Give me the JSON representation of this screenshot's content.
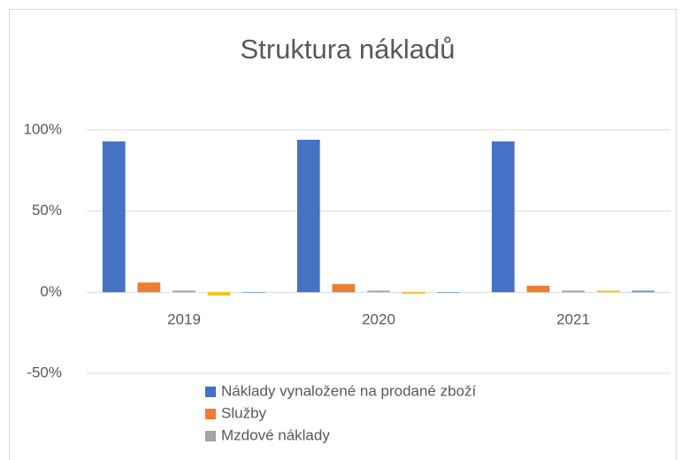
{
  "chart_data": {
    "type": "bar",
    "title": "Struktura nákladů",
    "categories": [
      "2019",
      "2020",
      "2021"
    ],
    "series": [
      {
        "name": "Náklady vynaložené na prodané zboží",
        "color": "#4472c4",
        "values": [
          93,
          94,
          93
        ]
      },
      {
        "name": "Služby",
        "color": "#ed7d31",
        "values": [
          6,
          5,
          4
        ]
      },
      {
        "name": "Mzdové náklady",
        "color": "#a5a5a5",
        "values": [
          1,
          1,
          1
        ]
      },
      {
        "color": "#ffc000",
        "values": [
          -2,
          -1,
          1
        ]
      },
      {
        "color": "#5b9bd5",
        "values": [
          0,
          0,
          1
        ]
      }
    ],
    "ylim": [
      -50,
      100
    ],
    "yticks": [
      {
        "value": -50,
        "label": "-50%"
      },
      {
        "value": 0,
        "label": "0%"
      },
      {
        "value": 50,
        "label": "50%"
      },
      {
        "value": 100,
        "label": "100%"
      }
    ],
    "grid": true,
    "legend": "bottom"
  }
}
